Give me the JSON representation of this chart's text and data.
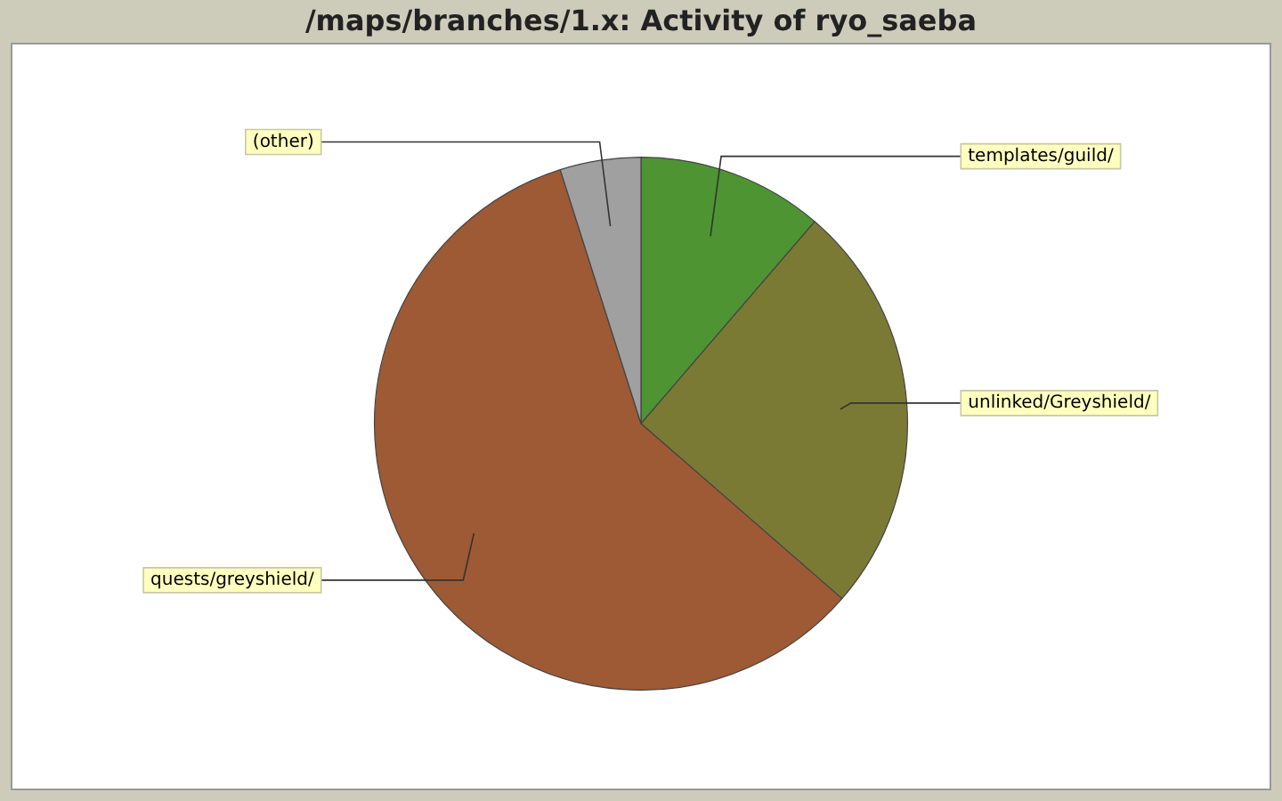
{
  "chart_data": {
    "type": "pie",
    "title": "/maps/branches/1.x: Activity of ryo_saeba",
    "categories": [
      "templates/guild/",
      "unlinked/Greyshield/",
      "quests/greyshield/",
      "(other)"
    ],
    "values": [
      11.3,
      25.1,
      58.7,
      4.9
    ],
    "colors": [
      "#4e9432",
      "#7a7a35",
      "#9e5a34",
      "#a0a0a0"
    ],
    "legend": false
  }
}
